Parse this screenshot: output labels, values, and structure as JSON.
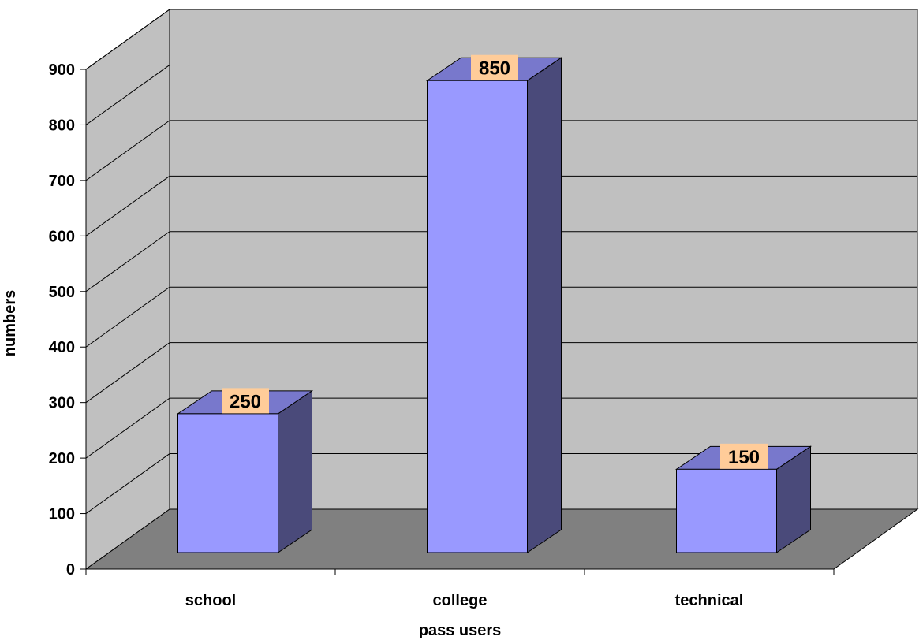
{
  "chart_data": {
    "type": "bar",
    "title": "",
    "xlabel": "pass users",
    "ylabel": "numbers",
    "categories": [
      "school",
      "college",
      "technical"
    ],
    "values": [
      250,
      850,
      150
    ],
    "data_labels": [
      "250",
      "850",
      "150"
    ],
    "ylim": [
      0,
      900
    ],
    "yticks": [
      "0",
      "100",
      "200",
      "300",
      "400",
      "500",
      "600",
      "700",
      "800",
      "900"
    ],
    "grid": true,
    "legend": "none",
    "style": "3d",
    "colors": {
      "bar_front": "#9999FF",
      "bar_top": "#7878CC",
      "bar_side": "#4A4A7A",
      "wall": "#C0C0C0",
      "floor": "#808080",
      "label_bg": "#FFCC99"
    }
  }
}
